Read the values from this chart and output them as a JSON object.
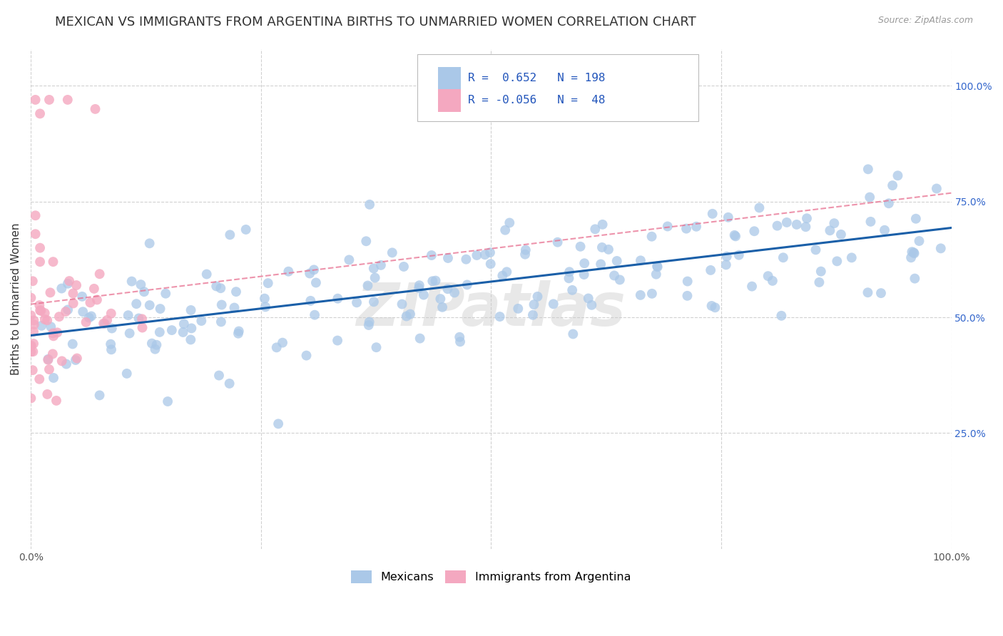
{
  "title": "MEXICAN VS IMMIGRANTS FROM ARGENTINA BIRTHS TO UNMARRIED WOMEN CORRELATION CHART",
  "source": "Source: ZipAtlas.com",
  "ylabel": "Births to Unmarried Women",
  "watermark": "ZIPatlas",
  "legend_label1": "Mexicans",
  "legend_label2": "Immigrants from Argentina",
  "r1": 0.652,
  "n1": 198,
  "r2": -0.056,
  "n2": 48,
  "blue_color": "#aac8e8",
  "blue_line_color": "#1a5fa8",
  "pink_color": "#f4a8c0",
  "pink_line_color": "#e87090",
  "grid_color": "#cccccc",
  "background_color": "#ffffff",
  "title_fontsize": 13,
  "axis_fontsize": 11,
  "tick_fontsize": 10,
  "source_fontsize": 9
}
